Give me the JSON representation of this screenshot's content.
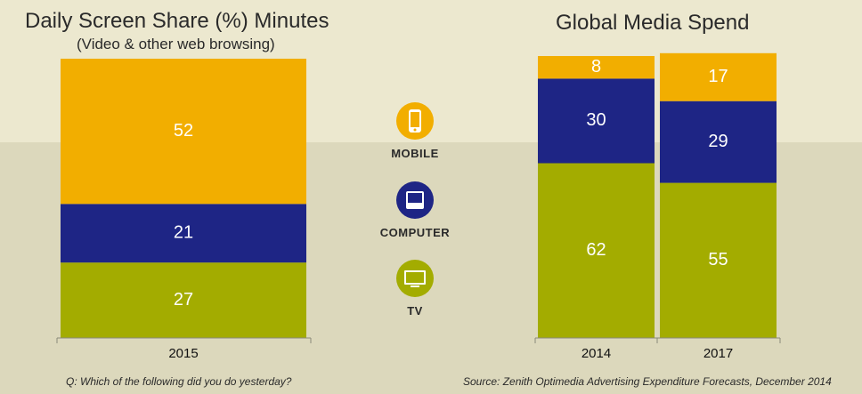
{
  "chart_data": [
    {
      "type": "stacked-bar",
      "title": "Daily Screen Share (%) Minutes",
      "subtitle": "(Video & other web browsing)",
      "categories": [
        "2015"
      ],
      "series": [
        {
          "name": "TV",
          "values": [
            27
          ]
        },
        {
          "name": "COMPUTER",
          "values": [
            21
          ]
        },
        {
          "name": "MOBILE",
          "values": [
            52
          ]
        }
      ],
      "ylim": [
        0,
        100
      ],
      "footnote": "Q: Which of the following did you do yesterday?"
    },
    {
      "type": "stacked-bar",
      "title": "Global Media Spend",
      "categories": [
        "2014",
        "2017"
      ],
      "series": [
        {
          "name": "TV",
          "values": [
            62,
            55
          ]
        },
        {
          "name": "COMPUTER",
          "values": [
            30,
            29
          ]
        },
        {
          "name": "MOBILE",
          "values": [
            8,
            17
          ]
        }
      ],
      "ylim": [
        0,
        100
      ],
      "footnote": "Source: Zenith Optimedia Advertising Expenditure Forecasts, December 2014"
    }
  ],
  "legend": [
    {
      "label": "MOBILE",
      "icon": "mobile-phone-icon",
      "color": "#f2ae00"
    },
    {
      "label": "COMPUTER",
      "icon": "computer-monitor-icon",
      "color": "#1e2585"
    },
    {
      "label": "TV",
      "icon": "tv-icon",
      "color": "#a3ac00"
    }
  ],
  "colors": {
    "TV": "#a3ac00",
    "COMPUTER": "#1e2585",
    "MOBILE": "#f2ae00"
  }
}
